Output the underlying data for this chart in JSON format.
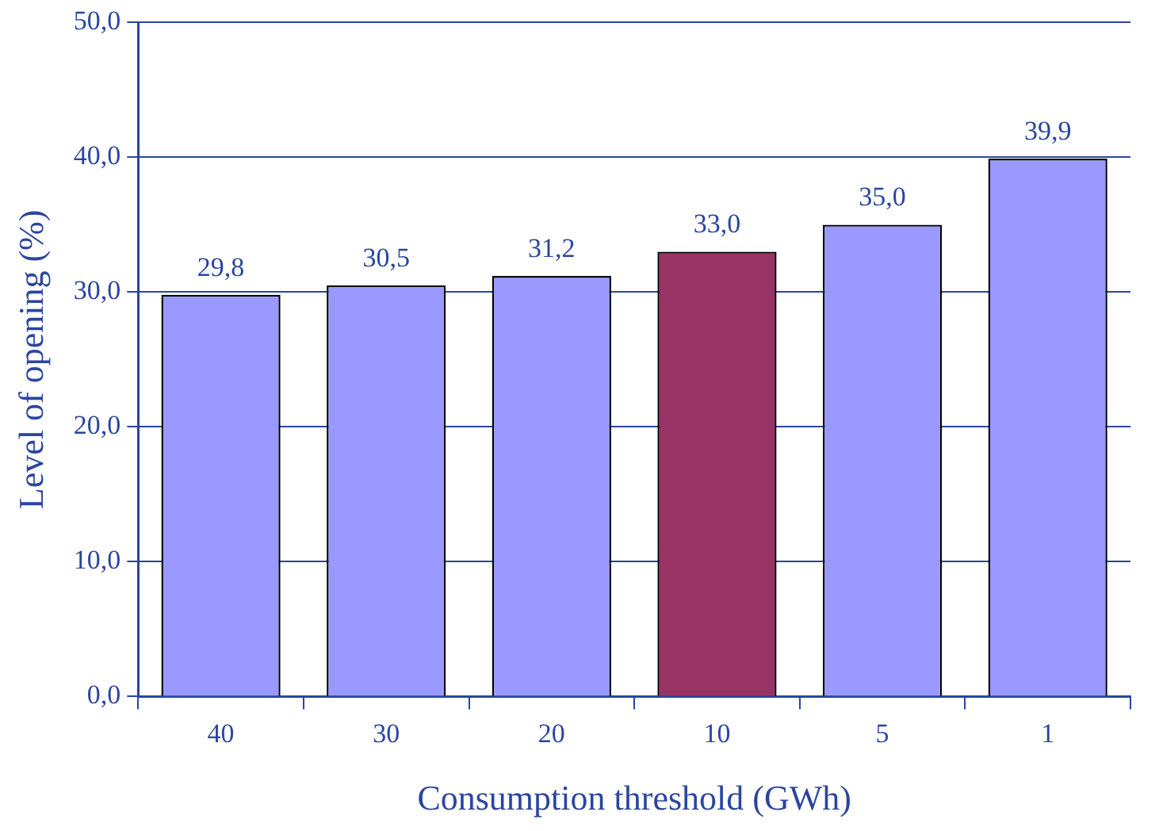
{
  "chart_data": {
    "type": "bar",
    "xlabel": "Consumption threshold (GWh)",
    "ylabel": "Level of opening (%)",
    "categories": [
      "40",
      "30",
      "20",
      "10",
      "5",
      "1"
    ],
    "values": [
      29.8,
      30.5,
      31.2,
      33.0,
      35.0,
      39.9
    ],
    "colors": [
      "#9999ff",
      "#9999ff",
      "#9999ff",
      "#993366",
      "#9999ff",
      "#9999ff"
    ],
    "value_labels": [
      "29,8",
      "30,5",
      "31,2",
      "33,0",
      "35,0",
      "39,9"
    ],
    "ylim": [
      0,
      50
    ],
    "yticks": [
      {
        "value": 0,
        "label": "0,0"
      },
      {
        "value": 10,
        "label": "10,0"
      },
      {
        "value": 20,
        "label": "20,0"
      },
      {
        "value": 30,
        "label": "30,0"
      },
      {
        "value": 40,
        "label": "40,0"
      },
      {
        "value": 50,
        "label": "50,0"
      }
    ],
    "grid": "y",
    "legend": false
  }
}
